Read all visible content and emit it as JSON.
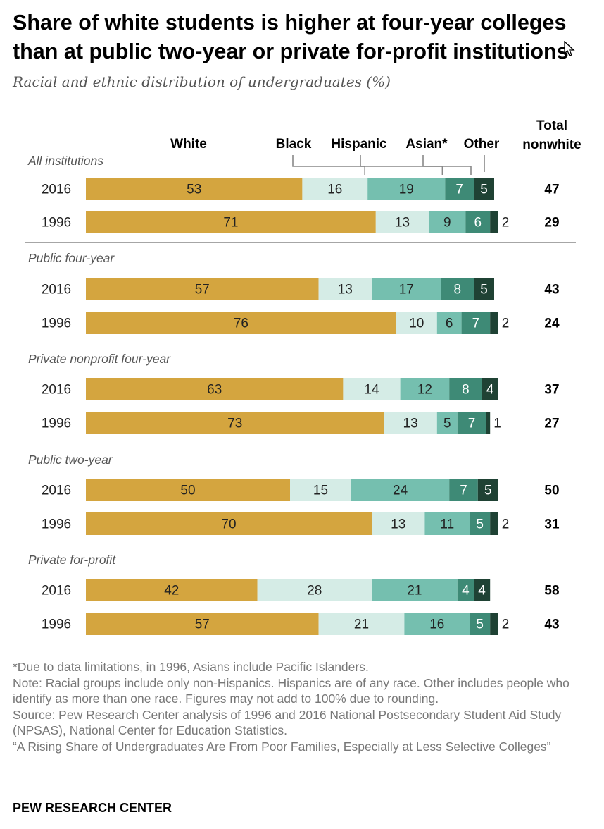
{
  "title": "Share of white students is higher at four-year colleges than at public two-year or private for-profit institutions",
  "subtitle": "Racial and ethnic distribution of undergraduates (%)",
  "notes": [
    "*Due to data limitations, in 1996, Asians include Pacific Islanders.",
    "Note: Racial groups include only non-Hispanics. Hispanics are of any race. Other includes people who identify as more than one race. Figures may not add to 100% due to rounding.",
    "Source: Pew Research Center analysis of 1996 and 2016 National Postsecondary Student Aid Study (NPSAS), National Center for Education Statistics.",
    "“A Rising Share of Undergraduates Are From Poor Families, Especially at Less Selective Colleges”"
  ],
  "footer": "PEW RESEARCH CENTER",
  "chart_data": {
    "type": "bar",
    "orientation": "horizontal",
    "stacked": true,
    "unit": "%",
    "series_names": [
      "White",
      "Black",
      "Hispanic",
      "Asian*",
      "Other"
    ],
    "series_colors": [
      "#d4a53f",
      "#d5ece6",
      "#75bfaf",
      "#3e8a76",
      "#1f4234"
    ],
    "total_header": "Total nonwhite",
    "groups": [
      {
        "label": "All institutions",
        "rows": [
          {
            "year": "2016",
            "values": [
              53,
              16,
              19,
              7,
              5
            ],
            "total_nonwhite": 47
          },
          {
            "year": "1996",
            "values": [
              71,
              13,
              9,
              6,
              2
            ],
            "total_nonwhite": 29
          }
        ]
      },
      {
        "label": "Public four-year",
        "rows": [
          {
            "year": "2016",
            "values": [
              57,
              13,
              17,
              8,
              5
            ],
            "total_nonwhite": 43
          },
          {
            "year": "1996",
            "values": [
              76,
              10,
              6,
              7,
              2
            ],
            "total_nonwhite": 24
          }
        ]
      },
      {
        "label": "Private nonprofit four-year",
        "rows": [
          {
            "year": "2016",
            "values": [
              63,
              14,
              12,
              8,
              4
            ],
            "total_nonwhite": 37
          },
          {
            "year": "1996",
            "values": [
              73,
              13,
              5,
              7,
              1
            ],
            "total_nonwhite": 27
          }
        ]
      },
      {
        "label": "Public two-year",
        "rows": [
          {
            "year": "2016",
            "values": [
              50,
              15,
              24,
              7,
              5
            ],
            "total_nonwhite": 50
          },
          {
            "year": "1996",
            "values": [
              70,
              13,
              11,
              5,
              2
            ],
            "total_nonwhite": 31
          }
        ]
      },
      {
        "label": "Private for-profit",
        "rows": [
          {
            "year": "2016",
            "values": [
              42,
              28,
              21,
              4,
              4
            ],
            "total_nonwhite": 58
          },
          {
            "year": "1996",
            "values": [
              57,
              21,
              16,
              5,
              2
            ],
            "total_nonwhite": 43
          }
        ]
      }
    ]
  }
}
